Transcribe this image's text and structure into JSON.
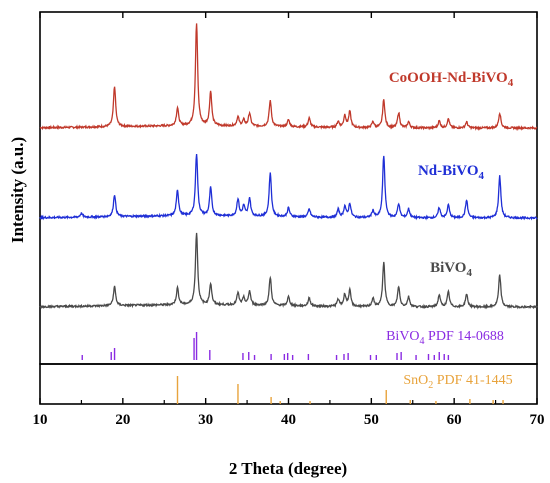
{
  "chart_data": {
    "type": "line",
    "xlabel": "2 Theta (degree)",
    "ylabel": "Intensity (a.u.)",
    "xlim": [
      10,
      70
    ],
    "xticks": [
      "10",
      "20",
      "30",
      "40",
      "50",
      "60",
      "70"
    ],
    "grid": false,
    "series": [
      {
        "name": "CoOOH-Nd-BiVO",
        "sub": "4",
        "color": "#c0392b",
        "peaks": [
          {
            "x": 19.0,
            "h": 40
          },
          {
            "x": 26.6,
            "h": 18
          },
          {
            "x": 28.9,
            "h": 102
          },
          {
            "x": 30.6,
            "h": 34
          },
          {
            "x": 33.9,
            "h": 9
          },
          {
            "x": 34.6,
            "h": 6
          },
          {
            "x": 35.3,
            "h": 13
          },
          {
            "x": 37.8,
            "h": 26
          },
          {
            "x": 40.0,
            "h": 7
          },
          {
            "x": 42.5,
            "h": 9
          },
          {
            "x": 46.0,
            "h": 6
          },
          {
            "x": 46.8,
            "h": 12
          },
          {
            "x": 47.4,
            "h": 16
          },
          {
            "x": 50.2,
            "h": 6
          },
          {
            "x": 51.5,
            "h": 28
          },
          {
            "x": 53.3,
            "h": 15
          },
          {
            "x": 54.5,
            "h": 6
          },
          {
            "x": 58.2,
            "h": 7
          },
          {
            "x": 59.3,
            "h": 9
          },
          {
            "x": 61.5,
            "h": 6
          },
          {
            "x": 65.5,
            "h": 15
          }
        ]
      },
      {
        "name": "Nd-BiVO",
        "sub": "4",
        "color": "#1f2fd6",
        "peaks": [
          {
            "x": 15.0,
            "h": 4
          },
          {
            "x": 19.0,
            "h": 22
          },
          {
            "x": 26.6,
            "h": 26
          },
          {
            "x": 28.9,
            "h": 62
          },
          {
            "x": 30.6,
            "h": 28
          },
          {
            "x": 33.9,
            "h": 17
          },
          {
            "x": 34.6,
            "h": 10
          },
          {
            "x": 35.3,
            "h": 18
          },
          {
            "x": 37.8,
            "h": 44
          },
          {
            "x": 40.0,
            "h": 9
          },
          {
            "x": 42.5,
            "h": 8
          },
          {
            "x": 46.0,
            "h": 8
          },
          {
            "x": 46.8,
            "h": 11
          },
          {
            "x": 47.4,
            "h": 14
          },
          {
            "x": 50.2,
            "h": 7
          },
          {
            "x": 51.5,
            "h": 62
          },
          {
            "x": 53.3,
            "h": 14
          },
          {
            "x": 54.5,
            "h": 9
          },
          {
            "x": 58.2,
            "h": 10
          },
          {
            "x": 59.3,
            "h": 13
          },
          {
            "x": 61.5,
            "h": 18
          },
          {
            "x": 65.5,
            "h": 42
          }
        ]
      },
      {
        "name": "BiVO",
        "sub": "4",
        "color": "#4a4a4a",
        "peaks": [
          {
            "x": 19.0,
            "h": 19
          },
          {
            "x": 26.6,
            "h": 17
          },
          {
            "x": 28.9,
            "h": 72
          },
          {
            "x": 30.6,
            "h": 21
          },
          {
            "x": 33.9,
            "h": 12
          },
          {
            "x": 34.6,
            "h": 7
          },
          {
            "x": 35.3,
            "h": 14
          },
          {
            "x": 37.8,
            "h": 28
          },
          {
            "x": 40.0,
            "h": 9
          },
          {
            "x": 42.5,
            "h": 8
          },
          {
            "x": 46.0,
            "h": 7
          },
          {
            "x": 46.8,
            "h": 12
          },
          {
            "x": 47.4,
            "h": 16
          },
          {
            "x": 50.2,
            "h": 8
          },
          {
            "x": 51.5,
            "h": 44
          },
          {
            "x": 53.3,
            "h": 20
          },
          {
            "x": 54.5,
            "h": 10
          },
          {
            "x": 58.2,
            "h": 12
          },
          {
            "x": 59.3,
            "h": 15
          },
          {
            "x": 61.5,
            "h": 13
          },
          {
            "x": 65.5,
            "h": 32
          }
        ]
      }
    ],
    "references": [
      {
        "name": "BiVO",
        "sub": "4",
        "text_after": " PDF 14-0688",
        "color": "#8a2be2",
        "lines": [
          {
            "x": 15.1,
            "h": 5
          },
          {
            "x": 18.6,
            "h": 8
          },
          {
            "x": 19.0,
            "h": 12
          },
          {
            "x": 28.6,
            "h": 22
          },
          {
            "x": 28.9,
            "h": 28
          },
          {
            "x": 30.5,
            "h": 10
          },
          {
            "x": 34.5,
            "h": 7
          },
          {
            "x": 35.2,
            "h": 8
          },
          {
            "x": 35.9,
            "h": 5
          },
          {
            "x": 37.9,
            "h": 6
          },
          {
            "x": 39.5,
            "h": 6
          },
          {
            "x": 39.9,
            "h": 7
          },
          {
            "x": 40.5,
            "h": 5
          },
          {
            "x": 42.4,
            "h": 6
          },
          {
            "x": 45.8,
            "h": 5
          },
          {
            "x": 46.7,
            "h": 6
          },
          {
            "x": 47.2,
            "h": 7
          },
          {
            "x": 49.9,
            "h": 5
          },
          {
            "x": 50.6,
            "h": 5
          },
          {
            "x": 53.1,
            "h": 7
          },
          {
            "x": 53.6,
            "h": 8
          },
          {
            "x": 55.4,
            "h": 5
          },
          {
            "x": 56.9,
            "h": 6
          },
          {
            "x": 57.6,
            "h": 5
          },
          {
            "x": 58.2,
            "h": 8
          },
          {
            "x": 58.8,
            "h": 6
          },
          {
            "x": 59.3,
            "h": 5
          }
        ]
      },
      {
        "name": "SnO",
        "sub": "2",
        "text_after": " PDF 41-1445",
        "color": "#e8a33c",
        "lines": [
          {
            "x": 26.6,
            "h": 28
          },
          {
            "x": 33.9,
            "h": 20
          },
          {
            "x": 37.9,
            "h": 7
          },
          {
            "x": 39.0,
            "h": 3
          },
          {
            "x": 42.6,
            "h": 3
          },
          {
            "x": 51.8,
            "h": 14
          },
          {
            "x": 54.7,
            "h": 4
          },
          {
            "x": 57.8,
            "h": 3
          },
          {
            "x": 61.9,
            "h": 5
          },
          {
            "x": 64.7,
            "h": 4
          },
          {
            "x": 65.9,
            "h": 4
          }
        ]
      }
    ]
  }
}
